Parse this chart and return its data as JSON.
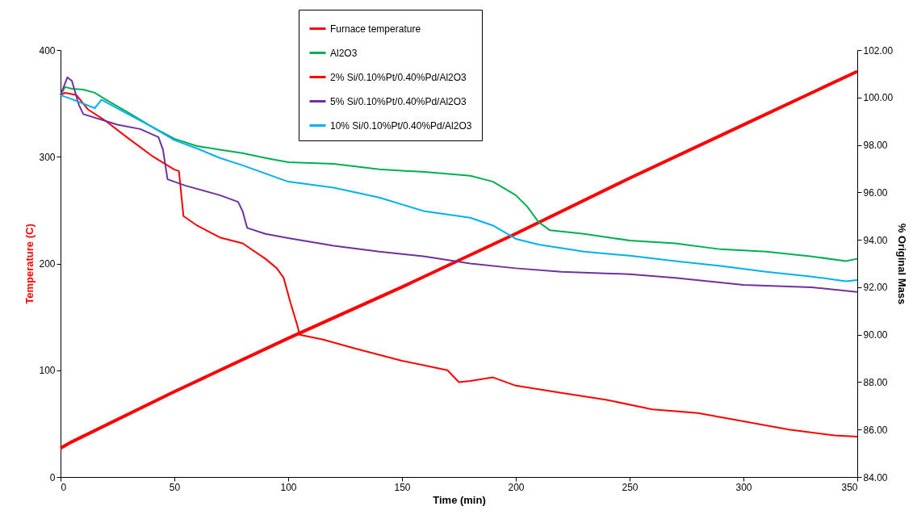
{
  "chart_data": {
    "type": "line",
    "xlabel": "Time (min)",
    "ylabel": "Temperature (C)",
    "y2label": "% Original Mass",
    "xlim": [
      0,
      350
    ],
    "xticks": [
      0,
      50,
      100,
      150,
      200,
      250,
      300,
      350
    ],
    "ylim": [
      0,
      400
    ],
    "yticks": [
      0,
      100,
      200,
      300,
      400
    ],
    "y2lim": [
      84,
      102
    ],
    "y2ticks": [
      {
        "value": 84,
        "label": "84.00"
      },
      {
        "value": 86,
        "label": "86.00"
      },
      {
        "value": 88,
        "label": "88.00"
      },
      {
        "value": 90,
        "label": "90.00"
      },
      {
        "value": 92,
        "label": "92.00"
      },
      {
        "value": 94,
        "label": "94.00"
      },
      {
        "value": 96,
        "label": "96.00"
      },
      {
        "value": 98,
        "label": "98.00"
      },
      {
        "value": 100,
        "label": "100.00"
      },
      {
        "value": 102,
        "label": "102.00"
      }
    ],
    "grid": false,
    "legend": "top",
    "marker": "none",
    "line_style": "solid",
    "series": [
      {
        "name": "Furnace temperature",
        "color": "#ff0000",
        "axis": "y",
        "x": [
          0,
          5,
          50,
          100,
          150,
          200,
          250,
          300,
          350
        ],
        "values": [
          27,
          33,
          80,
          130,
          178,
          228,
          280,
          330,
          380
        ]
      },
      {
        "name": "Al2O3",
        "color": "#00b050",
        "axis": "y2",
        "x": [
          0,
          2,
          5,
          10,
          15,
          20,
          30,
          40,
          50,
          60,
          70,
          80,
          90,
          100,
          120,
          140,
          160,
          180,
          190,
          200,
          205,
          210,
          215,
          230,
          250,
          270,
          290,
          310,
          330,
          345,
          350
        ],
        "values": [
          100.1,
          100.44,
          100.37,
          100.33,
          100.2,
          99.9,
          99.35,
          98.77,
          98.26,
          97.95,
          97.8,
          97.65,
          97.45,
          97.27,
          97.2,
          96.97,
          96.86,
          96.7,
          96.45,
          95.88,
          95.4,
          94.75,
          94.4,
          94.25,
          93.97,
          93.85,
          93.6,
          93.5,
          93.3,
          93.1,
          93.2
        ]
      },
      {
        "name": "2% Si/0.10%Pt/0.40%Pd/Al2O3",
        "color": "#ff0000",
        "axis": "y2",
        "x": [
          0,
          2,
          7,
          12,
          20,
          30,
          40,
          50,
          52,
          54,
          60,
          70,
          80,
          90,
          95,
          98,
          101,
          104,
          105,
          115,
          130,
          150,
          170,
          175,
          180,
          190,
          200,
          220,
          240,
          260,
          280,
          300,
          320,
          340,
          350
        ],
        "values": [
          100.1,
          100.2,
          100.1,
          99.5,
          99.0,
          98.26,
          97.55,
          96.96,
          96.9,
          95.0,
          94.6,
          94.1,
          93.85,
          93.2,
          92.8,
          92.4,
          91.35,
          90.4,
          90.0,
          89.8,
          89.4,
          88.9,
          88.5,
          88.0,
          88.05,
          88.2,
          87.85,
          87.55,
          87.25,
          86.85,
          86.7,
          86.35,
          86.0,
          85.75,
          85.7
        ]
      },
      {
        "name": "5% Si/0.10%Pt/0.40%Pd/Al2O3",
        "color": "#7030a0",
        "axis": "y2",
        "x": [
          0,
          3,
          5,
          8,
          10,
          25,
          35,
          43,
          45,
          47,
          55,
          70,
          78,
          80,
          82,
          90,
          100,
          120,
          140,
          160,
          180,
          200,
          220,
          250,
          270,
          300,
          330,
          350
        ],
        "values": [
          100.1,
          100.85,
          100.7,
          99.7,
          99.3,
          98.85,
          98.67,
          98.33,
          97.8,
          96.55,
          96.28,
          95.88,
          95.6,
          95.2,
          94.5,
          94.25,
          94.07,
          93.75,
          93.5,
          93.3,
          93.0,
          92.8,
          92.65,
          92.55,
          92.4,
          92.1,
          92.0,
          91.8
        ]
      },
      {
        "name": "10% Si/0.10%Pt/0.40%Pd/Al2O3",
        "color": "#00b0f0",
        "axis": "y2",
        "x": [
          0,
          5,
          15,
          18,
          30,
          40,
          50,
          60,
          70,
          80,
          100,
          120,
          140,
          160,
          180,
          190,
          200,
          210,
          230,
          250,
          270,
          290,
          310,
          330,
          345,
          350
        ],
        "values": [
          100.1,
          99.93,
          99.55,
          99.9,
          99.28,
          98.77,
          98.2,
          97.85,
          97.45,
          97.14,
          96.45,
          96.2,
          95.78,
          95.2,
          94.93,
          94.6,
          94.04,
          93.8,
          93.5,
          93.33,
          93.1,
          92.9,
          92.65,
          92.45,
          92.25,
          92.3
        ]
      }
    ]
  }
}
